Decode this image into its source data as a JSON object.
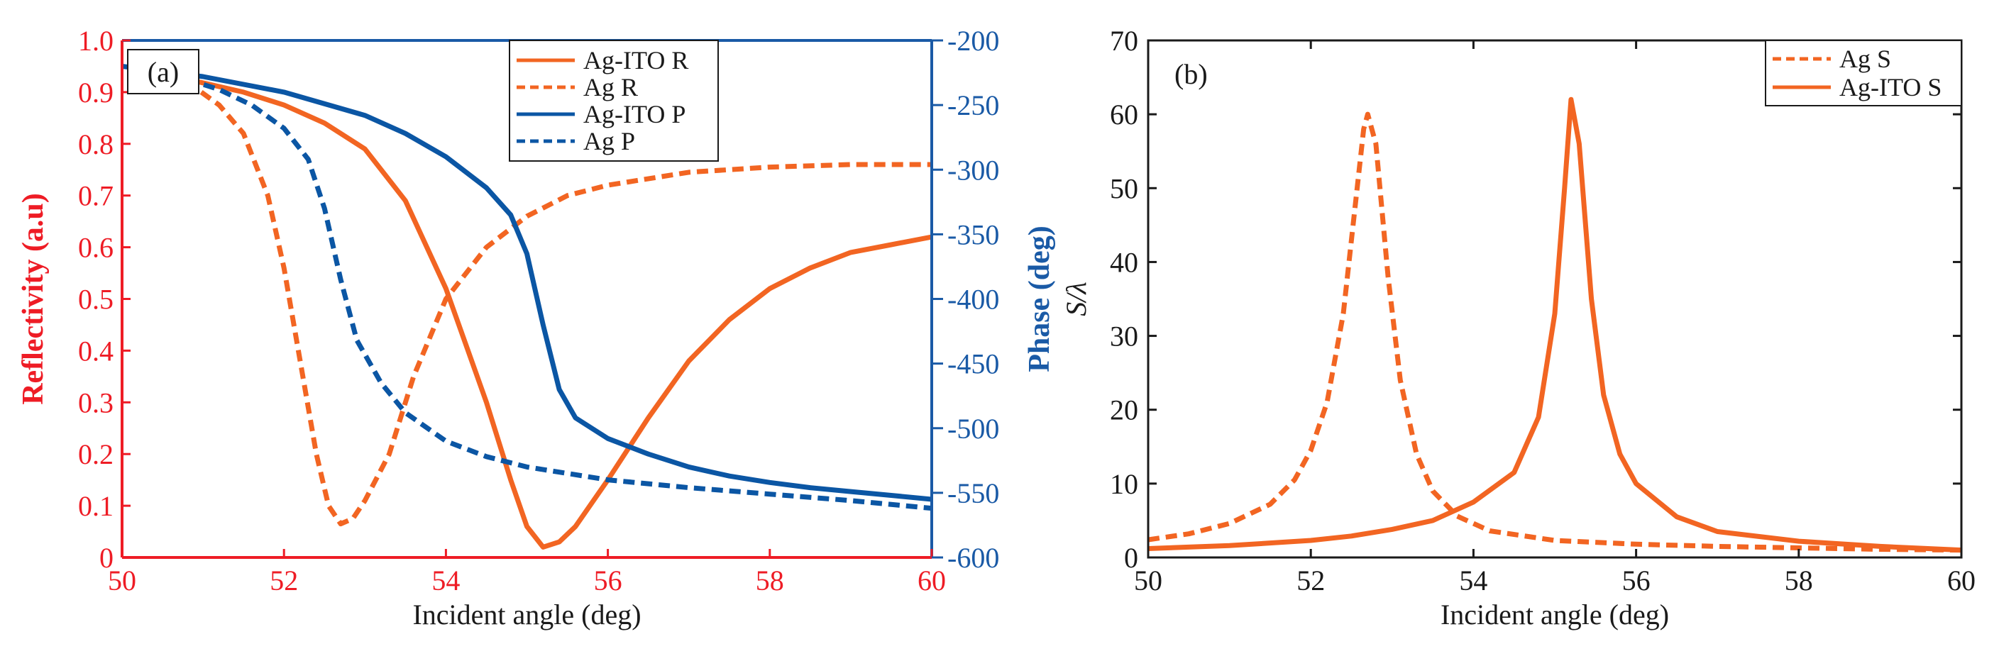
{
  "colors": {
    "orange": "#f26522",
    "blue": "#0b56a4",
    "red": "#ee1c25",
    "axisBlue": "#1a5aa6",
    "black": "#1a1a1a"
  },
  "chart_data": [
    {
      "panel": "(a)",
      "type": "line",
      "xlabel": "Incident angle  (deg)",
      "ylabel_left": "Reflectivity (a.u)",
      "ylabel_right": "Phase (deg)",
      "xlim": [
        50,
        60
      ],
      "ylim_left": [
        0,
        1
      ],
      "ylim_right": [
        -600,
        -200
      ],
      "xticks": [
        "50",
        "52",
        "54",
        "56",
        "58",
        "60"
      ],
      "yticks_left": [
        "0",
        "0.1",
        "0.2",
        "0.3",
        "0.4",
        "0.5",
        "0.6",
        "0.7",
        "0.8",
        "0.9",
        "1.0"
      ],
      "yticks_right": [
        "-600",
        "-550",
        "-500",
        "-450",
        "-400",
        "-350",
        "-300",
        "-250",
        "-200"
      ],
      "legend": [
        "Ag-ITO R",
        "Ag R",
        "Ag-ITO P",
        "Ag P"
      ],
      "series": [
        {
          "name": "Ag-ITO R",
          "axis": "left",
          "color": "orange",
          "dash": false,
          "points": [
            [
              50.8,
              0.925
            ],
            [
              51.5,
              0.9
            ],
            [
              52,
              0.875
            ],
            [
              52.5,
              0.84
            ],
            [
              53,
              0.79
            ],
            [
              53.5,
              0.69
            ],
            [
              54,
              0.52
            ],
            [
              54.5,
              0.3
            ],
            [
              54.8,
              0.15
            ],
            [
              55,
              0.06
            ],
            [
              55.2,
              0.02
            ],
            [
              55.4,
              0.03
            ],
            [
              55.6,
              0.06
            ],
            [
              56,
              0.15
            ],
            [
              56.5,
              0.27
            ],
            [
              57,
              0.38
            ],
            [
              57.5,
              0.46
            ],
            [
              58,
              0.52
            ],
            [
              58.5,
              0.56
            ],
            [
              59,
              0.59
            ],
            [
              59.5,
              0.605
            ],
            [
              60,
              0.62
            ]
          ]
        },
        {
          "name": "Ag R",
          "axis": "left",
          "color": "orange",
          "dash": true,
          "points": [
            [
              50.8,
              0.92
            ],
            [
              51.2,
              0.875
            ],
            [
              51.5,
              0.82
            ],
            [
              51.8,
              0.7
            ],
            [
              52,
              0.56
            ],
            [
              52.2,
              0.38
            ],
            [
              52.4,
              0.2
            ],
            [
              52.55,
              0.1
            ],
            [
              52.7,
              0.065
            ],
            [
              52.85,
              0.075
            ],
            [
              53,
              0.11
            ],
            [
              53.3,
              0.2
            ],
            [
              53.6,
              0.35
            ],
            [
              54,
              0.5
            ],
            [
              54.5,
              0.6
            ],
            [
              55,
              0.66
            ],
            [
              55.5,
              0.7
            ],
            [
              56,
              0.72
            ],
            [
              57,
              0.745
            ],
            [
              58,
              0.755
            ],
            [
              59,
              0.76
            ],
            [
              60,
              0.76
            ]
          ]
        },
        {
          "name": "Ag-ITO P",
          "axis": "right",
          "color": "blue",
          "dash": false,
          "points": [
            [
              50,
              -220
            ],
            [
              51,
              -228
            ],
            [
              52,
              -240
            ],
            [
              53,
              -258
            ],
            [
              53.5,
              -272
            ],
            [
              54,
              -290
            ],
            [
              54.5,
              -314
            ],
            [
              54.8,
              -335
            ],
            [
              55,
              -365
            ],
            [
              55.2,
              -420
            ],
            [
              55.4,
              -470
            ],
            [
              55.6,
              -492
            ],
            [
              56,
              -508
            ],
            [
              56.5,
              -520
            ],
            [
              57,
              -530
            ],
            [
              57.5,
              -537
            ],
            [
              58,
              -542
            ],
            [
              58.5,
              -546
            ],
            [
              59,
              -549
            ],
            [
              59.5,
              -552
            ],
            [
              60,
              -555
            ]
          ]
        },
        {
          "name": "Ag P",
          "axis": "right",
          "color": "blue",
          "dash": true,
          "points": [
            [
              50.8,
              -230
            ],
            [
              51.2,
              -238
            ],
            [
              51.6,
              -250
            ],
            [
              52,
              -268
            ],
            [
              52.3,
              -292
            ],
            [
              52.5,
              -330
            ],
            [
              52.7,
              -385
            ],
            [
              52.9,
              -432
            ],
            [
              53.2,
              -465
            ],
            [
              53.5,
              -488
            ],
            [
              54,
              -510
            ],
            [
              54.5,
              -522
            ],
            [
              55,
              -530
            ],
            [
              55.5,
              -535
            ],
            [
              56,
              -540
            ],
            [
              57,
              -546
            ],
            [
              58,
              -551
            ],
            [
              59,
              -556
            ],
            [
              60,
              -562
            ]
          ]
        }
      ]
    },
    {
      "panel": "(b)",
      "type": "line",
      "xlabel": "Incident angle  (deg)",
      "ylabel": "S/λ",
      "xlim": [
        50,
        60
      ],
      "ylim": [
        0,
        70
      ],
      "xticks": [
        "50",
        "52",
        "54",
        "56",
        "58",
        "60"
      ],
      "yticks": [
        "0",
        "10",
        "20",
        "30",
        "40",
        "50",
        "60",
        "70"
      ],
      "legend": [
        "Ag S",
        "Ag-ITO S"
      ],
      "series": [
        {
          "name": "Ag S",
          "color": "orange",
          "dash": true,
          "points": [
            [
              50,
              2.4
            ],
            [
              50.5,
              3.2
            ],
            [
              51,
              4.6
            ],
            [
              51.5,
              7.2
            ],
            [
              51.8,
              10.5
            ],
            [
              52,
              14.5
            ],
            [
              52.2,
              21
            ],
            [
              52.4,
              33
            ],
            [
              52.55,
              48
            ],
            [
              52.65,
              58
            ],
            [
              52.7,
              60
            ],
            [
              52.8,
              56
            ],
            [
              52.95,
              38
            ],
            [
              53.1,
              24
            ],
            [
              53.3,
              14
            ],
            [
              53.5,
              9
            ],
            [
              53.8,
              5.6
            ],
            [
              54.2,
              3.6
            ],
            [
              55,
              2.3
            ],
            [
              56,
              1.8
            ],
            [
              57,
              1.5
            ],
            [
              58,
              1.3
            ],
            [
              59,
              1.1
            ],
            [
              60,
              1
            ]
          ]
        },
        {
          "name": "Ag-ITO S",
          "color": "orange",
          "dash": false,
          "points": [
            [
              50,
              1.2
            ],
            [
              51,
              1.6
            ],
            [
              52,
              2.3
            ],
            [
              52.5,
              2.9
            ],
            [
              53,
              3.8
            ],
            [
              53.5,
              5
            ],
            [
              54,
              7.5
            ],
            [
              54.5,
              11.5
            ],
            [
              54.8,
              19
            ],
            [
              55,
              33
            ],
            [
              55.12,
              50
            ],
            [
              55.2,
              62
            ],
            [
              55.3,
              56
            ],
            [
              55.45,
              35
            ],
            [
              55.6,
              22
            ],
            [
              55.8,
              14
            ],
            [
              56,
              10
            ],
            [
              56.5,
              5.5
            ],
            [
              57,
              3.5
            ],
            [
              58,
              2.2
            ],
            [
              59,
              1.5
            ],
            [
              60,
              1
            ]
          ]
        }
      ]
    }
  ]
}
